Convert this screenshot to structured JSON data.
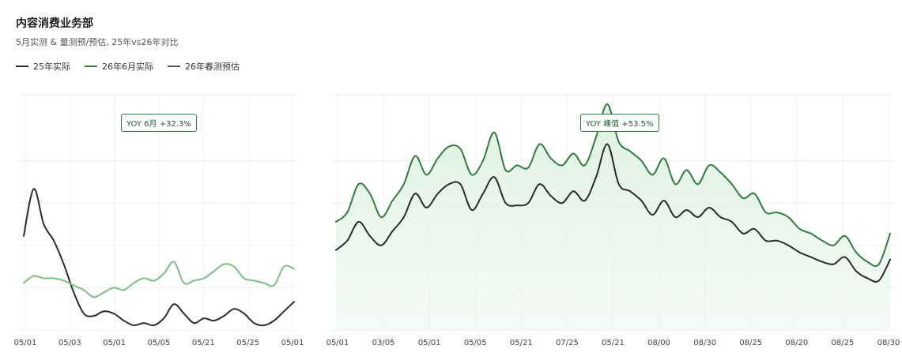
{
  "header": {
    "title": "内容消费业务部",
    "subtitle": "5月实测 & 量测预/预估, 25年vs26年对比"
  },
  "legend": [
    {
      "label": "25年实际",
      "color": "#2b2b2b"
    },
    {
      "label": "26年6月实际",
      "color": "#2e7d3e"
    },
    {
      "label": "26年春测预估",
      "color": "#555555"
    }
  ],
  "annotations": [
    {
      "label": "YOY 6月 +32.3%"
    },
    {
      "label": "YOY 峰值 +53.5%"
    }
  ],
  "chart_data": [
    {
      "type": "line",
      "panel": "left",
      "x_ticks": [
        "05/01",
        "05/03",
        "05/01",
        "05/05",
        "05/21",
        "05/25",
        "05/01"
      ],
      "ylim": [
        0,
        100
      ],
      "grid": true,
      "series": [
        {
          "name": "25年实际",
          "color": "#2b2b2b",
          "values": [
            40,
            60,
            45,
            38,
            28,
            16,
            7,
            6,
            8,
            7,
            4,
            2,
            3,
            2,
            5,
            11,
            7,
            3,
            5,
            4,
            6,
            9,
            7,
            3,
            2,
            4,
            8,
            12
          ]
        },
        {
          "name": "26年6月实际",
          "color": "#7bbf86",
          "values": [
            20,
            23,
            22,
            22,
            21,
            19,
            17,
            14,
            16,
            18,
            17,
            20,
            22,
            21,
            24,
            29,
            20,
            21,
            22,
            25,
            28,
            27,
            22,
            21,
            20,
            19,
            27,
            26
          ]
        }
      ]
    },
    {
      "type": "area",
      "panel": "right",
      "x_ticks": [
        "05/01",
        "03/05",
        "05/01",
        "05/05",
        "05/21",
        "07/25",
        "05/21",
        "08/00",
        "08/30",
        "08/25",
        "08/20",
        "08/25",
        "08/30"
      ],
      "ylim": [
        0,
        100
      ],
      "grid": true,
      "series": [
        {
          "name": "26年6月实际",
          "color": "#2e7d3e",
          "values": [
            46,
            50,
            62,
            58,
            48,
            55,
            62,
            74,
            66,
            73,
            78,
            77,
            66,
            72,
            84,
            68,
            70,
            69,
            79,
            73,
            70,
            75,
            70,
            82,
            96,
            80,
            76,
            72,
            66,
            73,
            62,
            68,
            62,
            70,
            67,
            62,
            56,
            58,
            50,
            50,
            48,
            43,
            41,
            38,
            36,
            40,
            33,
            29,
            28,
            41
          ]
        },
        {
          "name": "25年实际",
          "color": "#2b2b2b",
          "values": [
            34,
            38,
            46,
            40,
            36,
            42,
            48,
            58,
            52,
            58,
            62,
            62,
            51,
            58,
            65,
            54,
            53,
            54,
            62,
            57,
            54,
            59,
            55,
            65,
            79,
            62,
            59,
            55,
            49,
            55,
            48,
            51,
            48,
            52,
            48,
            46,
            41,
            43,
            38,
            38,
            36,
            33,
            31,
            29,
            28,
            31,
            25,
            22,
            21,
            30
          ]
        }
      ]
    }
  ]
}
